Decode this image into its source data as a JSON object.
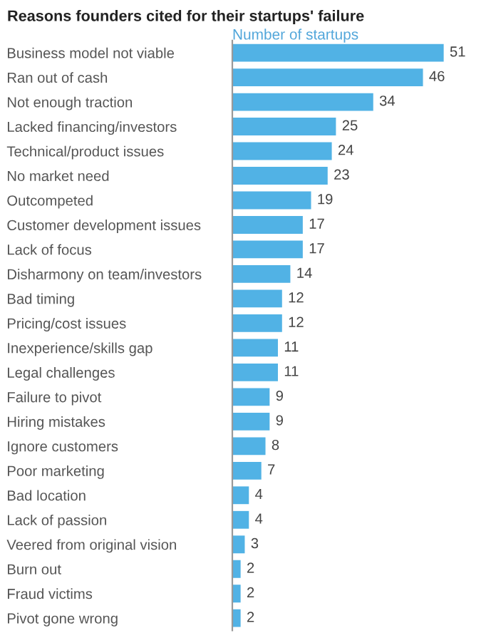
{
  "chart_data": {
    "type": "bar",
    "orientation": "horizontal",
    "title": "Reasons founders cited for their startups' failure",
    "subtitle": "Number of startups",
    "categories": [
      "Business model not viable",
      "Ran out of cash",
      "Not enough traction",
      "Lacked financing/investors",
      "Technical/product issues",
      "No market need",
      "Outcompeted",
      "Customer development issues",
      "Lack of focus",
      "Disharmony on team/investors",
      "Bad timing",
      "Pricing/cost issues",
      "Inexperience/skills gap",
      "Legal challenges",
      "Failure to pivot",
      "Hiring mistakes",
      "Ignore customers",
      "Poor marketing",
      "Bad location",
      "Lack of passion",
      "Veered from original vision",
      "Burn out",
      "Fraud victims",
      "Pivot gone wrong"
    ],
    "values": [
      51,
      46,
      34,
      25,
      24,
      23,
      19,
      17,
      17,
      14,
      12,
      12,
      11,
      11,
      9,
      9,
      8,
      7,
      4,
      4,
      3,
      2,
      2,
      2
    ],
    "color": "#51b2e5",
    "tick_labels": "y",
    "data_labels": true,
    "grid": false,
    "legend": false
  }
}
